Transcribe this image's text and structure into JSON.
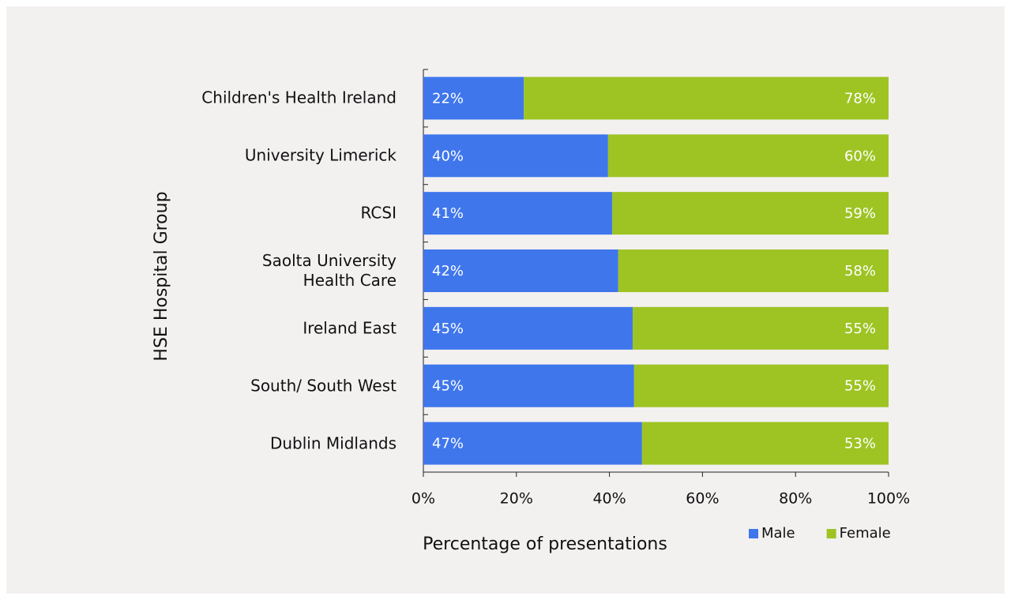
{
  "chart_data": {
    "type": "stacked-bar-horizontal",
    "y_axis_label": "HSE Hospital Group",
    "x_axis_label": "Percentage of presentations",
    "categories": [
      "Children's Health Ireland",
      "University Limerick",
      "RCSI",
      "Saolta University\nHealth Care",
      "Ireland East",
      "South/ South West",
      "Dublin Midlands"
    ],
    "series": [
      {
        "name": "Male",
        "color": "#3f76ec",
        "values": [
          21.6,
          39.7,
          40.6,
          41.9,
          45.0,
          45.3,
          47.0
        ],
        "value_labels": [
          "22%",
          "40%",
          "41%",
          "42%",
          "45%",
          "45%",
          "47%"
        ]
      },
      {
        "name": "Female",
        "color": "#9dc423",
        "values": [
          78.4,
          60.3,
          59.4,
          58.1,
          55.0,
          54.7,
          53.0
        ],
        "value_labels": [
          "78%",
          "60%",
          "59%",
          "58%",
          "55%",
          "55%",
          "53%"
        ]
      }
    ],
    "xlim": [
      0,
      100
    ],
    "xticks": [
      {
        "value": 0,
        "label": "0%"
      },
      {
        "value": 20,
        "label": "20%"
      },
      {
        "value": 40,
        "label": "40%"
      },
      {
        "value": 60,
        "label": "60%"
      },
      {
        "value": 80,
        "label": "80%"
      },
      {
        "value": 100,
        "label": "100%"
      }
    ]
  }
}
